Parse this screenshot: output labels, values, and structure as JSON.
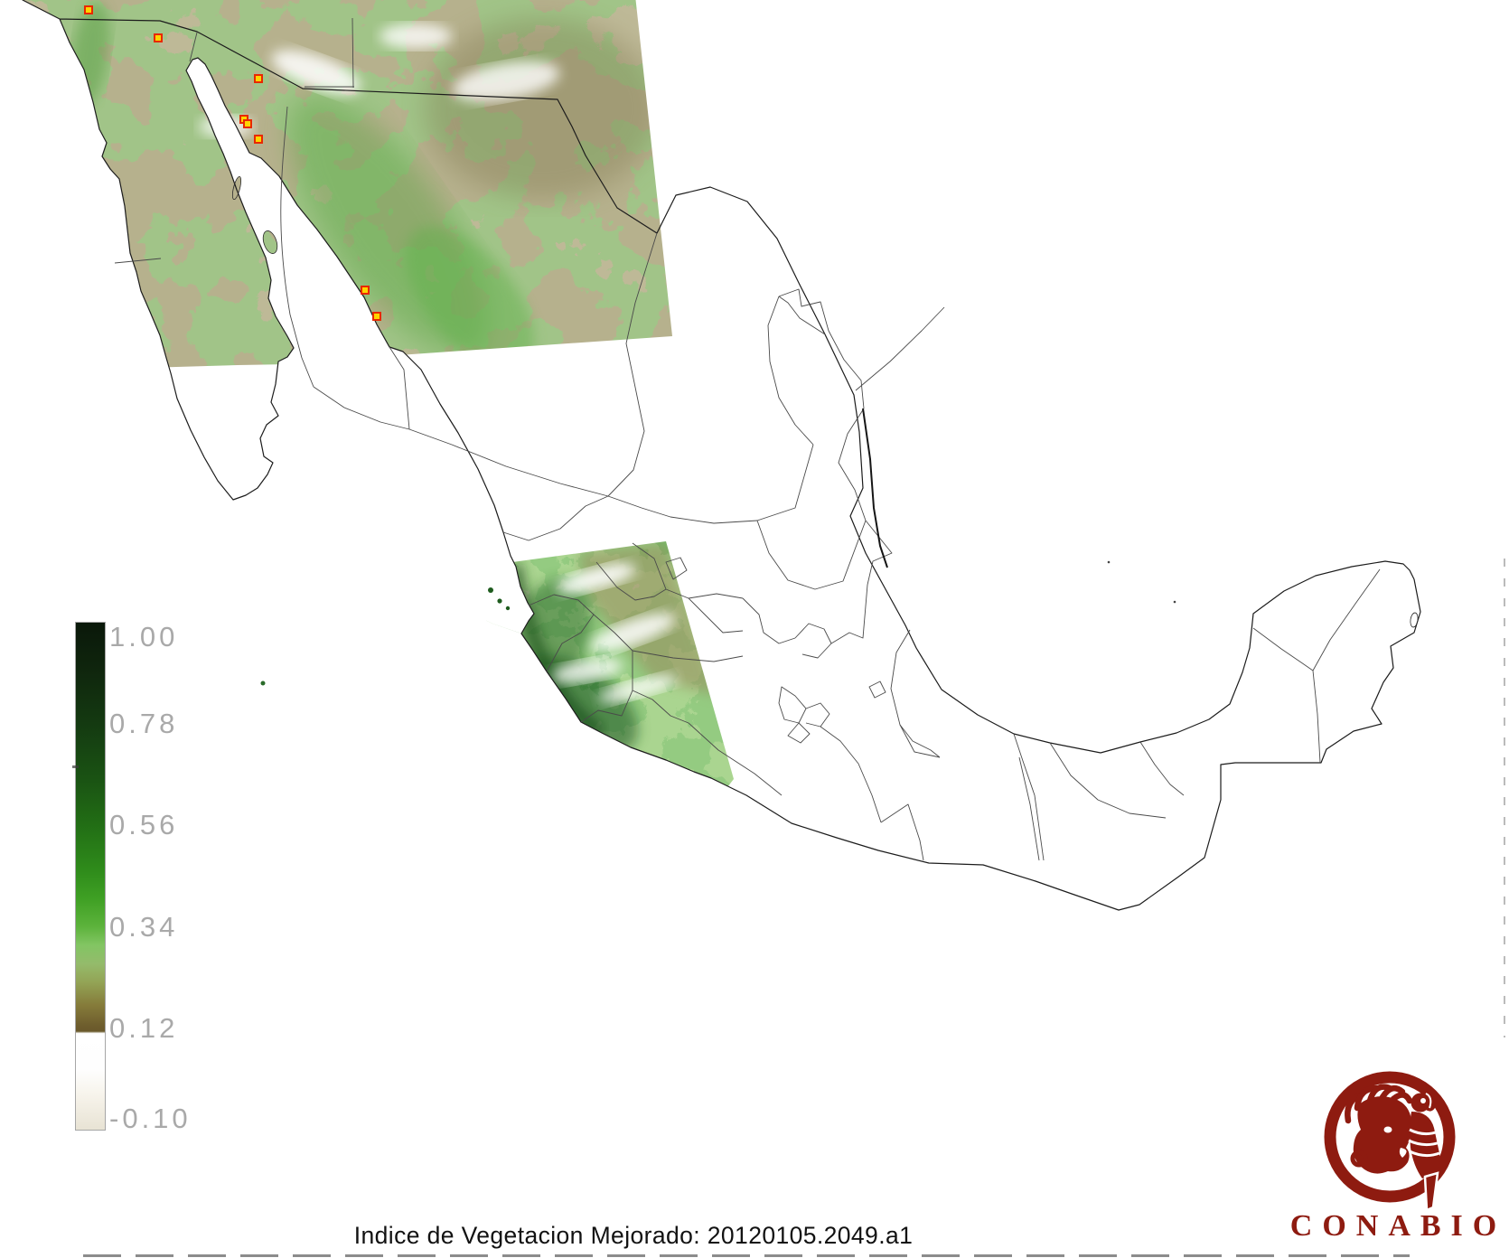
{
  "title": {
    "text": "Indice de Vegetacion Mejorado: 20120105.2049.a1"
  },
  "logo": {
    "text": "CONABIO",
    "color": "#8e1b10"
  },
  "legend": {
    "orientation": "vertical",
    "value_min": -0.1,
    "value_max": 1.0,
    "tick_values": [
      1.0,
      0.78,
      0.56,
      0.34,
      0.12,
      -0.1
    ],
    "tick_labels": [
      "1.00",
      "0.78",
      "0.56",
      "0.34",
      "0.12",
      "-0.10"
    ],
    "colors": {
      "high_evi": "#0a180a",
      "mid_green": "#3fa024",
      "light_green": "#82c563",
      "olive": "#857b3a",
      "brown_at_012": "#6a592b",
      "below_012": "#ffffff",
      "lowest": "#e8e3d4"
    }
  },
  "map": {
    "region": "Mexico with state boundaries",
    "swaths": [
      {
        "name": "northwest-swath",
        "appearance": "brown-olive with green mottling and white clouds"
      },
      {
        "name": "central-west-swath",
        "appearance": "green with dark green coast, pale brown northeast, white clouds"
      }
    ],
    "fire_markers": {
      "count": 8,
      "border_color": "#e82800",
      "fill_color": "#ffd400",
      "positions": [
        [
          98,
          11
        ],
        [
          175,
          42
        ],
        [
          286,
          87
        ],
        [
          270,
          132
        ],
        [
          274,
          137
        ],
        [
          286,
          154
        ],
        [
          404,
          321
        ],
        [
          417,
          350
        ]
      ]
    }
  }
}
